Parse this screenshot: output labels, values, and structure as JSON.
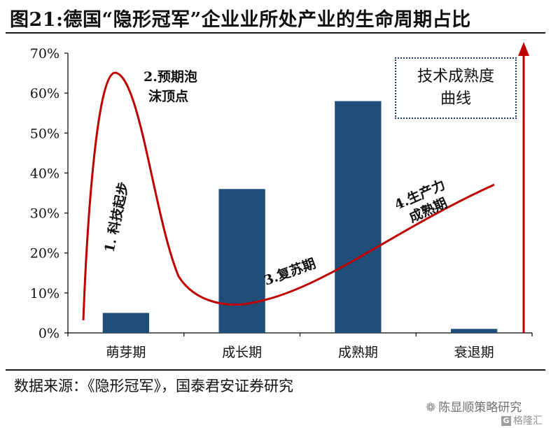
{
  "header": {
    "title": "图21:德国“隐形冠军”企业业所处产业的生命周期占比"
  },
  "source": {
    "text": "数据来源：《隐形冠军》，国泰君安证券研究"
  },
  "watermark": {
    "account": "陈显顺策略研究",
    "logo_text": "格隆汇",
    "icon": "wechat-icon"
  },
  "callout": {
    "text": "技术成熟度曲线"
  },
  "colors": {
    "bar": "#1f4e79",
    "curve": "#c00000",
    "arrow": "#c00000",
    "axis": "#000000"
  },
  "annotations": {
    "a1": "1. 科技起步",
    "a2_line1": "2.预期泡",
    "a2_line2": "沫顶点",
    "a3": "3.复苏期",
    "a4_line1": "4.生产力",
    "a4_line2": "成熟期"
  },
  "chart_data": {
    "type": "bar",
    "categories": [
      "萌芽期",
      "成长期",
      "成熟期",
      "衰退期"
    ],
    "values": [
      5,
      36,
      58,
      1
    ],
    "unit": "%",
    "ylim": [
      0,
      70
    ],
    "yticks": [
      "0%",
      "10%",
      "20%",
      "30%",
      "40%",
      "50%",
      "60%",
      "70%"
    ],
    "grid": false,
    "overlay_curve": "hype cycle (技术成熟度曲线)"
  }
}
